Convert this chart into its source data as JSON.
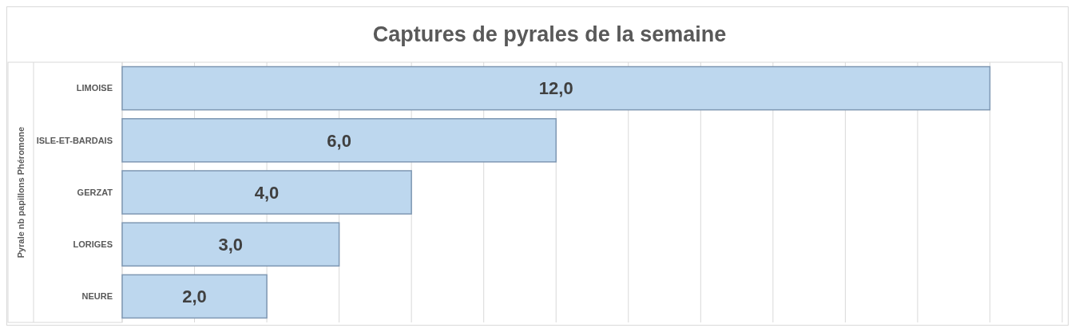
{
  "chart_data": {
    "type": "bar",
    "orientation": "horizontal",
    "title": "Captures de pyrales de la semaine",
    "ylabel": "Pyrale nb papillons Phéromone",
    "categories": [
      "LIMOISE",
      "ISLE-ET-BARDAIS",
      "GERZAT",
      "LORIGES",
      "NEURE"
    ],
    "values": [
      12,
      6,
      4,
      3,
      2
    ],
    "color": "#bdd7ee",
    "value_labels": [
      "12,0",
      "6,0",
      "4,0",
      "3,0",
      "2,0"
    ],
    "xlim": [
      0,
      13
    ],
    "xticks": [
      {
        "value": 0,
        "label": null
      },
      {
        "value": 1,
        "label": null
      },
      {
        "value": 2,
        "label": null
      },
      {
        "value": 3,
        "label": null
      },
      {
        "value": 4,
        "label": null
      },
      {
        "value": 5,
        "label": null
      },
      {
        "value": 6,
        "label": null
      },
      {
        "value": 7,
        "label": null
      },
      {
        "value": 8,
        "label": null
      },
      {
        "value": 9,
        "label": null
      },
      {
        "value": 10,
        "label": null
      },
      {
        "value": 11,
        "label": null
      },
      {
        "value": 12,
        "label": null
      },
      {
        "value": 13,
        "label": null
      }
    ],
    "grid": "x",
    "tick_labels": "y"
  }
}
